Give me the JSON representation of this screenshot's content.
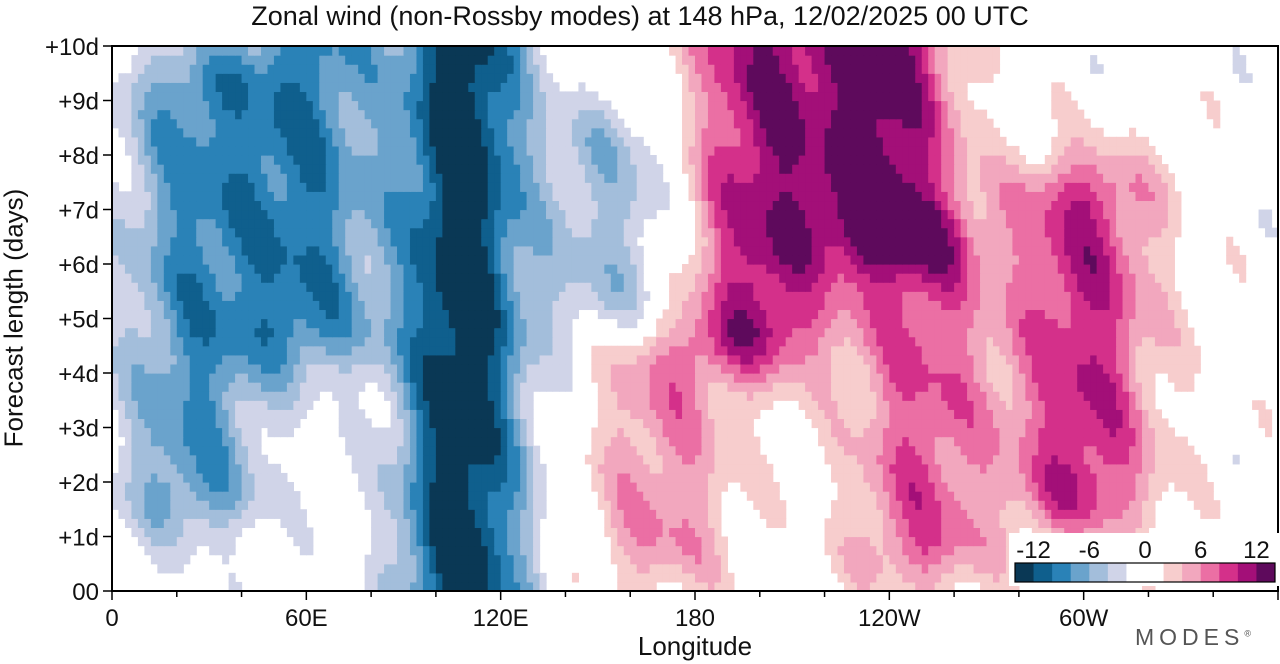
{
  "chart_data": {
    "type": "heatmap",
    "title": "Zonal wind (non-Rossby modes) at 148 hPa,  12/02/2025  00 UTC",
    "xlabel": "Longitude",
    "ylabel": "Forecast length (days)",
    "x_ticks": [
      "0",
      "60E",
      "120E",
      "180",
      "120W",
      "60W"
    ],
    "x_tick_values": [
      0,
      60,
      120,
      180,
      240,
      300
    ],
    "y_ticks": [
      "00",
      "+1d",
      "+2d",
      "+3d",
      "+4d",
      "+5d",
      "+6d",
      "+7d",
      "+8d",
      "+9d",
      "+10d"
    ],
    "xlim": [
      0,
      360
    ],
    "ylim": [
      0,
      10
    ],
    "colorbar": {
      "labels": [
        "-12",
        "-6",
        "0",
        "6",
        "12"
      ],
      "label_values": [
        -12,
        -6,
        0,
        6,
        12
      ],
      "colors": [
        "#0a3855",
        "#0f5f8d",
        "#2a82b7",
        "#6aa3cc",
        "#a3bedb",
        "#d0d4e8",
        "#ffffff",
        "#ffffff",
        "#f7cdcd",
        "#f2a7be",
        "#eb6fa4",
        "#d4308a",
        "#a30f78",
        "#5e0a5c"
      ]
    },
    "field_features": [
      {
        "sign": "negative",
        "center_lon": 108,
        "day_from": 0,
        "day_to": 10,
        "peak": -14
      },
      {
        "sign": "negative",
        "center_lon": 25,
        "day_from": 2,
        "day_to": 9,
        "peak": -8
      },
      {
        "sign": "negative",
        "center_lon": 60,
        "day_from": 5,
        "day_to": 10,
        "peak": -9
      },
      {
        "sign": "negative",
        "center_lon": 155,
        "day_from": 5.5,
        "day_to": 8,
        "peak": -5
      },
      {
        "sign": "positive",
        "center_lon": 200,
        "day_from": 5,
        "day_to": 10,
        "peak": 11
      },
      {
        "sign": "positive",
        "center_lon": 238,
        "day_from": 7,
        "day_to": 10,
        "peak": 13
      },
      {
        "sign": "positive",
        "center_lon": 300,
        "day_from": 2,
        "day_to": 7,
        "peak": 10
      },
      {
        "sign": "positive",
        "center_lon": 250,
        "day_from": 1,
        "day_to": 6,
        "peak": 8
      },
      {
        "sign": "positive",
        "center_lon": 170,
        "day_from": 1,
        "day_to": 4,
        "peak": 6
      }
    ]
  },
  "brand": "MODES",
  "brand_mark": "®"
}
